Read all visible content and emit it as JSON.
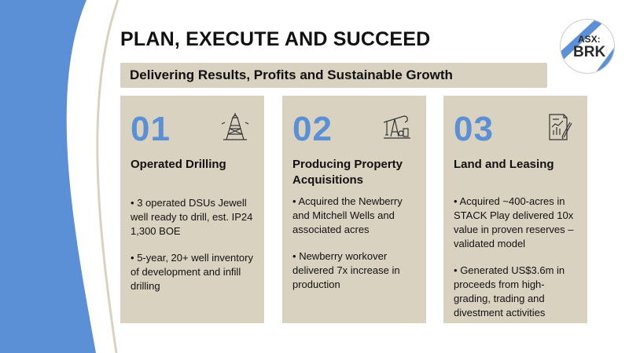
{
  "title": "PLAN, EXECUTE AND SUCCEED",
  "subtitle": "Delivering Results, Profits and Sustainable Growth",
  "logo": {
    "line1": "ASX:",
    "line2": "BRK"
  },
  "colors": {
    "accent_blue": "#5b8fd6",
    "card_bg": "#d9d2c0",
    "dark": "#2a2a2a"
  },
  "bullet_glyph": "•",
  "cards": [
    {
      "number": "01",
      "icon": "drilling-rig-icon",
      "heading": "Operated Drilling",
      "bullets": [
        "3 operated DSUs Jewell well ready to drill, est. IP24 1,300 BOE",
        "5-year, 20+ well inventory of development and infill drilling"
      ]
    },
    {
      "number": "02",
      "icon": "pumpjack-icon",
      "heading": "Producing Property Acquisitions",
      "bullets": [
        "Acquired the Newberry and Mitchell Wells and associated acres",
        "Newberry workover delivered 7x increase in production"
      ]
    },
    {
      "number": "03",
      "icon": "report-chart-icon",
      "heading": "Land and Leasing",
      "bullets": [
        "Acquired ~400-acres in STACK Play delivered 10x value in proven reserves – validated model",
        "Generated US$3.6m in proceeds from high-grading, trading and divestment activities"
      ]
    }
  ]
}
